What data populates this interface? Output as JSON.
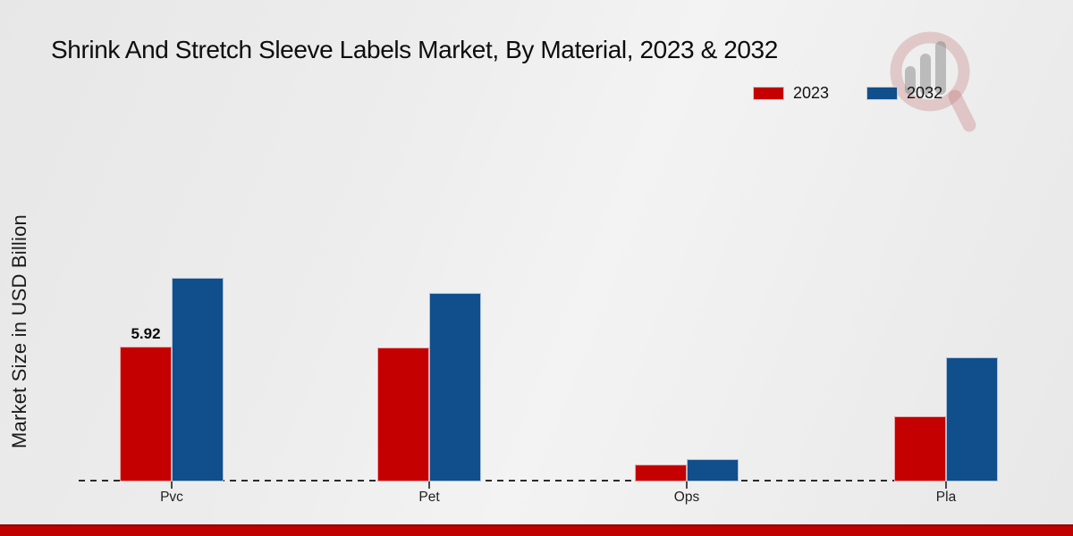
{
  "title": "Shrink And Stretch Sleeve Labels Market, By Material, 2023 & 2032",
  "ylabel": "Market Size in USD Billion",
  "legend": [
    {
      "label": "2023",
      "color": "#c40000"
    },
    {
      "label": "2032",
      "color": "#104e8c"
    }
  ],
  "footer_color": "#bf0101",
  "watermark_icon": "magnifier-bar-chart-logo",
  "chart_data": {
    "type": "bar",
    "categories": [
      "Pvc",
      "Pet",
      "Ops",
      "Pla"
    ],
    "series": [
      {
        "name": "2023",
        "color": "#c40000",
        "values": [
          5.92,
          5.88,
          0.75,
          2.86
        ]
      },
      {
        "name": "2032",
        "color": "#104e8c",
        "values": [
          8.94,
          8.27,
          0.98,
          5.45
        ]
      }
    ],
    "bar_label": {
      "series_index": 0,
      "category_index": 0,
      "text": "5.92"
    },
    "title": "Shrink And Stretch Sleeve Labels Market, By Material, 2023 & 2032",
    "xlabel": "",
    "ylabel": "Market Size in USD Billion",
    "ylim": [
      0,
      10.5
    ],
    "grid": false,
    "y_axis_ticks_visible": false,
    "baseline_style": "dashed",
    "legend_position": "top-right"
  }
}
